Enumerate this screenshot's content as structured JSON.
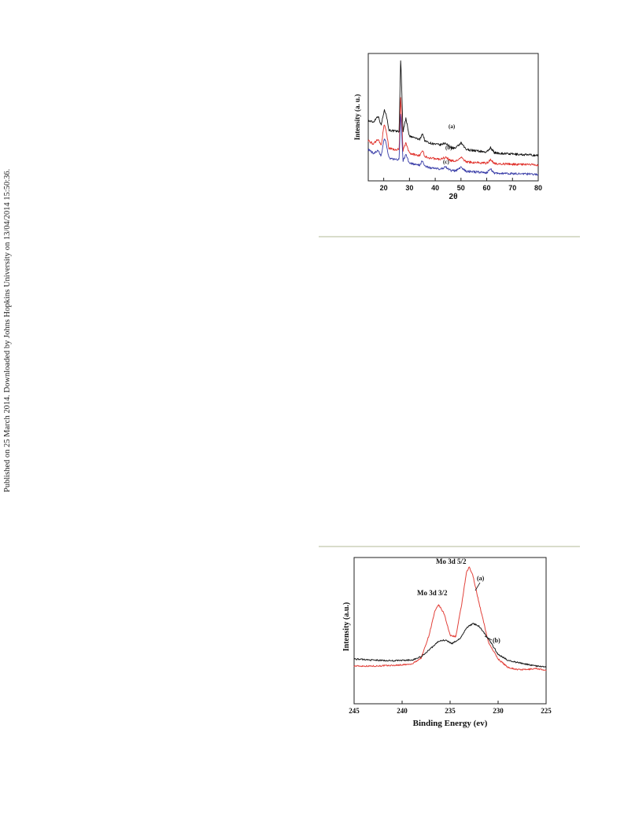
{
  "sidebar_note": "Published on 25 March 2014. Downloaded by Johns Hopkins University on 13/04/2014 15:50:36.",
  "figures": [
    {
      "chart_data": {
        "type": "line",
        "xlabel": "2θ",
        "ylabel": "Intensity (a. u.)",
        "xlim": [
          14,
          80
        ],
        "x_ticks": [
          20,
          30,
          40,
          50,
          60,
          70,
          80
        ],
        "y_ticks_visible": false,
        "grid": false,
        "series": [
          {
            "name": "(a)",
            "color": "#111111",
            "x": [
              14,
              16,
              17.8,
              19,
              20.2,
              20.9,
              22,
              24,
              26,
              26.6,
              27.5,
              28.6,
              30,
              32,
              34,
              35,
              36,
              38,
              40,
              42,
              44,
              46,
              48,
              50,
              52,
              54,
              56,
              58,
              60,
              61.5,
              63,
              66,
              70,
              75,
              80
            ],
            "y": [
              9.2,
              9.0,
              10.0,
              8.5,
              10.8,
              10.4,
              7.8,
              7.6,
              7.6,
              19.0,
              7.5,
              9.6,
              6.8,
              6.6,
              6.3,
              7.3,
              6.1,
              5.8,
              5.6,
              5.5,
              5.8,
              5.1,
              5.0,
              5.8,
              4.8,
              4.7,
              4.6,
              4.5,
              4.4,
              5.1,
              4.3,
              4.2,
              4.1,
              4.0,
              3.9
            ]
          },
          {
            "name": "(b)",
            "color": "#e0302a",
            "x": [
              14,
              16,
              17.8,
              19,
              20.2,
              20.9,
              22,
              24,
              26,
              26.6,
              27.5,
              28.6,
              30,
              32,
              34,
              35,
              36,
              38,
              40,
              42,
              44,
              46,
              48,
              50,
              52,
              54,
              56,
              58,
              60,
              61.5,
              63,
              66,
              70,
              75,
              80
            ],
            "y": [
              6.2,
              5.6,
              6.4,
              5.4,
              8.6,
              7.8,
              5.0,
              4.8,
              4.8,
              13.0,
              4.6,
              5.8,
              4.2,
              4.0,
              3.9,
              4.7,
              3.7,
              3.5,
              3.4,
              3.3,
              3.6,
              3.1,
              3.0,
              3.6,
              2.9,
              2.85,
              2.8,
              2.75,
              2.7,
              3.3,
              2.65,
              2.6,
              2.55,
              2.5,
              2.45
            ]
          },
          {
            "name": "(c)",
            "color": "#3a3ea8",
            "x": [
              14,
              16,
              17.8,
              19,
              20.2,
              20.9,
              22,
              24,
              26,
              26.6,
              27.5,
              28.6,
              30,
              32,
              34,
              35,
              36,
              38,
              40,
              42,
              44,
              46,
              48,
              50,
              52,
              54,
              56,
              58,
              60,
              61.5,
              63,
              66,
              70,
              75,
              80
            ],
            "y": [
              4.8,
              4.2,
              4.6,
              3.8,
              6.6,
              5.8,
              3.5,
              3.3,
              3.3,
              10.5,
              3.1,
              4.0,
              2.7,
              2.5,
              2.4,
              3.1,
              2.2,
              2.0,
              1.9,
              1.8,
              2.1,
              1.6,
              1.55,
              2.1,
              1.45,
              1.4,
              1.35,
              1.3,
              1.25,
              1.8,
              1.2,
              1.15,
              1.1,
              1.05,
              1.0
            ]
          }
        ],
        "annotations": [
          "(a)",
          "(b)",
          "(c)"
        ]
      }
    },
    {
      "chart_data": {
        "type": "line",
        "xlabel": "Binding Energy (ev)",
        "ylabel": "Intensity (a.u.)",
        "xlim": [
          245,
          225
        ],
        "x_ticks": [
          245,
          240,
          235,
          230,
          225
        ],
        "x_reversed": true,
        "y_ticks_visible": false,
        "grid": false,
        "series": [
          {
            "name": "(a)",
            "color": "#e2413a",
            "x": [
              245,
              243,
              241,
              239,
              238,
              237.2,
              236.6,
              236.2,
              235.6,
              235,
              234.4,
              233.8,
              233.3,
              233,
              232.6,
              232,
              231,
              230,
              229,
              228,
              227,
              226,
              225
            ],
            "y": [
              1.0,
              1.0,
              1.05,
              1.15,
              1.7,
              3.6,
              5.6,
              6.2,
              5.4,
              3.6,
              3.5,
              6.2,
              8.9,
              9.4,
              8.6,
              6.4,
              3.0,
              1.6,
              0.9,
              0.7,
              0.7,
              0.8,
              0.6
            ]
          },
          {
            "name": "(b)",
            "color": "#1a1a1a",
            "x": [
              245,
              243,
              241,
              239,
              238,
              237,
              236.2,
              235.5,
              234.8,
              234,
              233.2,
              232.6,
              232,
              231,
              230,
              229,
              228,
              227,
              226,
              225
            ],
            "y": [
              1.6,
              1.5,
              1.45,
              1.5,
              1.8,
              2.5,
              3.1,
              3.2,
              2.9,
              3.3,
              4.3,
              4.6,
              4.4,
              3.3,
              2.0,
              1.5,
              1.3,
              1.15,
              1.0,
              0.9
            ]
          }
        ],
        "annotations": [
          "Mo 3d 5/2",
          "Mo 3d 3/2",
          "(a)",
          "(b)"
        ]
      }
    }
  ]
}
